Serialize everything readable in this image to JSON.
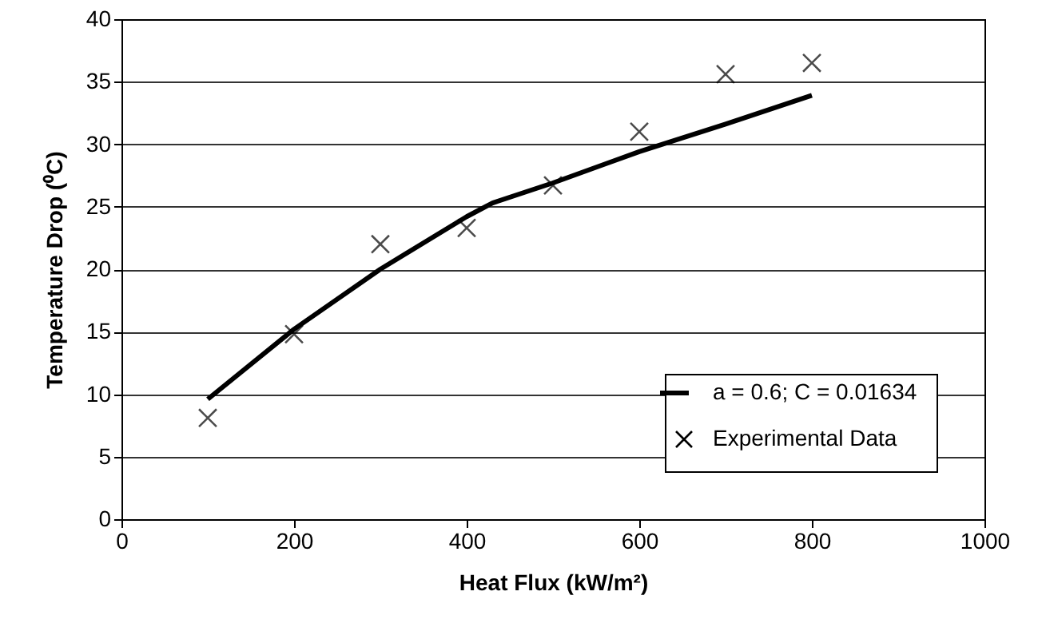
{
  "chart_data": {
    "type": "scatter",
    "xlabel": "Heat Flux (kW/m²)",
    "ylabel": "Temperature Drop (⁰C)",
    "xlim": [
      0,
      1000
    ],
    "xticks": [
      0,
      200,
      400,
      600,
      800,
      1000
    ],
    "ylim": [
      0,
      40
    ],
    "yticks": [
      0,
      5,
      10,
      15,
      20,
      25,
      30,
      35,
      40
    ],
    "grid": "y",
    "legend": "bottom right",
    "series": [
      {
        "name": "a = 0.6; C = 0.01634",
        "type": "line",
        "marker": "none",
        "line_style": "solid",
        "color": "#000000",
        "x": [
          100,
          200,
          300,
          400,
          430,
          500,
          600,
          700,
          800
        ],
        "values": [
          9.6,
          15.2,
          20.0,
          24.2,
          25.3,
          26.9,
          29.4,
          31.6,
          33.9
        ]
      },
      {
        "name": "Experimental Data",
        "type": "scatter",
        "marker": "cross",
        "color": "#000000",
        "x": [
          100,
          200,
          300,
          400,
          500,
          600,
          700,
          800
        ],
        "values": [
          8.1,
          14.8,
          22.0,
          23.3,
          26.7,
          31.0,
          35.6,
          36.5
        ]
      }
    ]
  }
}
